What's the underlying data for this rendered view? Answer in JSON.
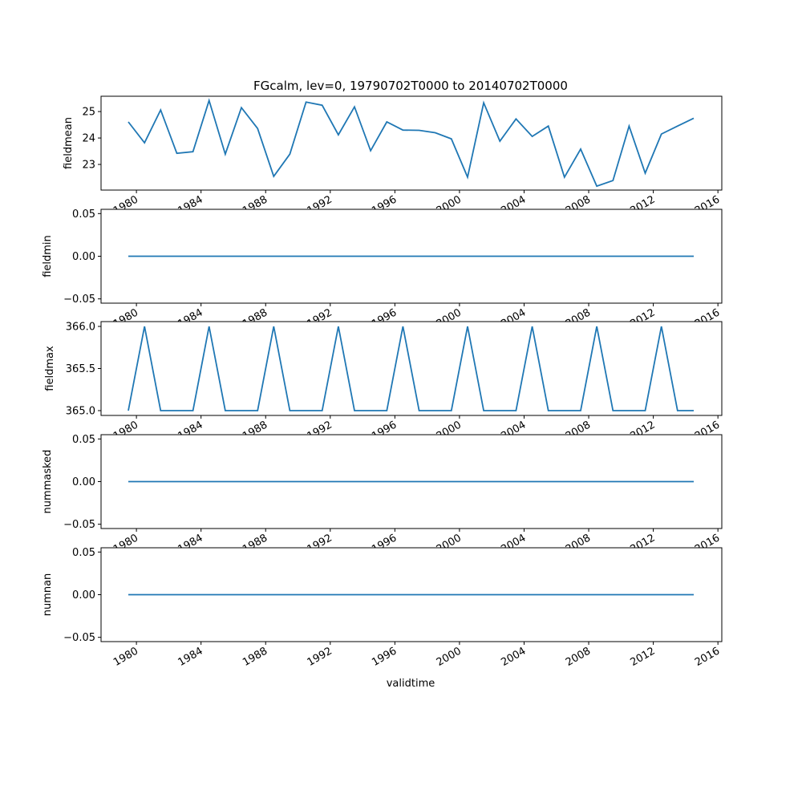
{
  "chart_data": {
    "type": "line",
    "title": "FGcalm, lev=0, 19790702T0000 to 20140702T0000",
    "xlabel": "validtime",
    "x": [
      1979.5,
      1980.5,
      1981.5,
      1982.5,
      1983.5,
      1984.5,
      1985.5,
      1986.5,
      1987.5,
      1988.5,
      1989.5,
      1990.5,
      1991.5,
      1992.5,
      1993.5,
      1994.5,
      1995.5,
      1996.5,
      1997.5,
      1998.5,
      1999.5,
      2000.5,
      2001.5,
      2002.5,
      2003.5,
      2004.5,
      2005.5,
      2006.5,
      2007.5,
      2008.5,
      2009.5,
      2010.5,
      2011.5,
      2012.5,
      2013.5,
      2014.5
    ],
    "xlim": [
      1977.81,
      2016.24
    ],
    "xticks": [
      1980,
      1984,
      1988,
      1992,
      1996,
      2000,
      2004,
      2008,
      2012,
      2016
    ],
    "xtick_labels": [
      "1980",
      "1984",
      "1988",
      "1992",
      "1996",
      "2000",
      "2004",
      "2008",
      "2012",
      "2016"
    ],
    "line_color": "#1f77b4",
    "panels": [
      {
        "ylabel": "fieldmean",
        "ylim": [
          22.03,
          25.58
        ],
        "yticks": [
          23,
          24,
          25
        ],
        "ytick_labels": [
          "23",
          "24",
          "25"
        ],
        "values": [
          24.61,
          23.82,
          25.06,
          23.42,
          23.48,
          25.42,
          23.39,
          25.15,
          24.36,
          22.55,
          23.39,
          25.36,
          25.24,
          24.12,
          25.18,
          23.52,
          24.61,
          24.3,
          24.29,
          24.2,
          23.97,
          22.52,
          25.33,
          23.88,
          24.72,
          24.06,
          24.45,
          22.52,
          23.58,
          22.18,
          22.39,
          24.45,
          22.67,
          24.15,
          24.45,
          24.75
        ]
      },
      {
        "ylabel": "fieldmin",
        "ylim": [
          -0.055,
          0.055
        ],
        "yticks": [
          -0.05,
          0,
          0.05
        ],
        "ytick_labels": [
          "−0.05",
          "0.00",
          "0.05"
        ],
        "values": [
          0,
          0,
          0,
          0,
          0,
          0,
          0,
          0,
          0,
          0,
          0,
          0,
          0,
          0,
          0,
          0,
          0,
          0,
          0,
          0,
          0,
          0,
          0,
          0,
          0,
          0,
          0,
          0,
          0,
          0,
          0,
          0,
          0,
          0,
          0,
          0
        ]
      },
      {
        "ylabel": "fieldmax",
        "ylim": [
          364.943,
          366.057
        ],
        "yticks": [
          365.0,
          365.5,
          366.0
        ],
        "ytick_labels": [
          "365.0",
          "365.5",
          "366.0"
        ],
        "values": [
          365,
          366,
          365,
          365,
          365,
          366,
          365,
          365,
          365,
          366,
          365,
          365,
          365,
          366,
          365,
          365,
          365,
          366,
          365,
          365,
          365,
          366,
          365,
          365,
          365,
          366,
          365,
          365,
          365,
          366,
          365,
          365,
          365,
          366,
          365,
          365
        ]
      },
      {
        "ylabel": "nummasked",
        "ylim": [
          -0.055,
          0.055
        ],
        "yticks": [
          -0.05,
          0,
          0.05
        ],
        "ytick_labels": [
          "−0.05",
          "0.00",
          "0.05"
        ],
        "values": [
          0,
          0,
          0,
          0,
          0,
          0,
          0,
          0,
          0,
          0,
          0,
          0,
          0,
          0,
          0,
          0,
          0,
          0,
          0,
          0,
          0,
          0,
          0,
          0,
          0,
          0,
          0,
          0,
          0,
          0,
          0,
          0,
          0,
          0,
          0,
          0
        ]
      },
      {
        "ylabel": "numnan",
        "ylim": [
          -0.055,
          0.055
        ],
        "yticks": [
          -0.05,
          0,
          0.05
        ],
        "ytick_labels": [
          "−0.05",
          "0.00",
          "0.05"
        ],
        "values": [
          0,
          0,
          0,
          0,
          0,
          0,
          0,
          0,
          0,
          0,
          0,
          0,
          0,
          0,
          0,
          0,
          0,
          0,
          0,
          0,
          0,
          0,
          0,
          0,
          0,
          0,
          0,
          0,
          0,
          0,
          0,
          0,
          0,
          0,
          0,
          0
        ]
      }
    ]
  }
}
